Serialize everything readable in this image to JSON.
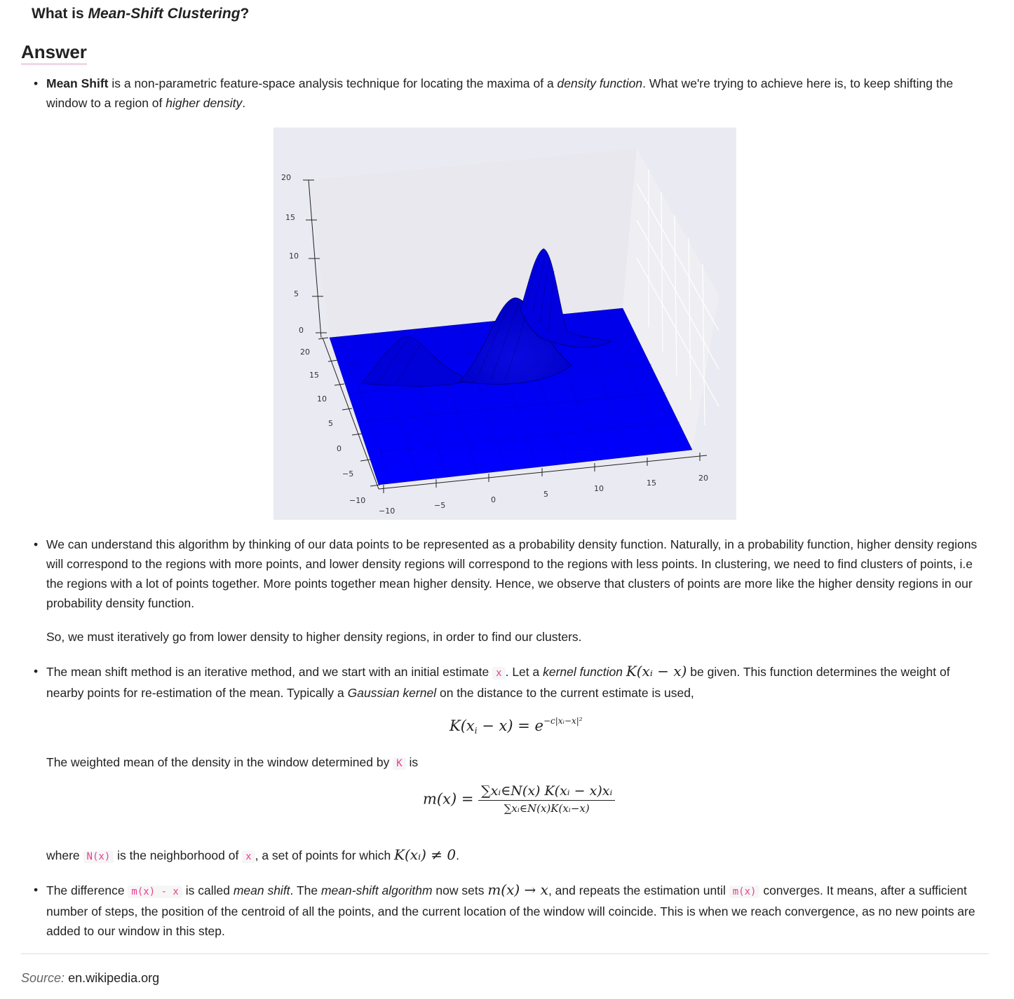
{
  "question": {
    "prefix": "What is ",
    "term": "Mean-Shift Clustering",
    "suffix": "?"
  },
  "answer_heading": "Answer",
  "bullet1": {
    "bold": "Mean Shift",
    "t1": " is a non-parametric feature-space analysis technique for locating the maxima of a ",
    "em1": "density function",
    "t2": ". What we're trying to achieve here is, to keep shifting the window to a region of ",
    "em2": "higher density",
    "t3": "."
  },
  "figure": {
    "z_ticks": [
      "20",
      "15",
      "10",
      "5",
      "0"
    ],
    "y_ticks": [
      "20",
      "15",
      "10",
      "5",
      "0",
      "−5",
      "−10"
    ],
    "x_ticks": [
      "−10",
      "−5",
      "0",
      "5",
      "10",
      "15",
      "20"
    ],
    "surface_color": "#0000ff",
    "pane_color": "#eaeaf2"
  },
  "bullet2": {
    "text": "We can understand this algorithm by thinking of our data points to be represented as a probability density function. Naturally, in a probability function, higher density regions will correspond to the regions with more points, and lower density regions will correspond to the regions with less points. In clustering, we need to find clusters of points, i.e the regions with a lot of points together. More points together mean higher density. Hence, we observe that clusters of points are more like the higher density regions in our probability density function.",
    "followup": "So, we must iteratively go from lower density to higher density regions, in order to find our clusters."
  },
  "bullet3": {
    "t1": "The mean shift method is an iterative method, and we start with an initial estimate ",
    "code1": "x",
    "t2": ". Let a ",
    "em1": "kernel function",
    "math1": "K(xᵢ − x)",
    "t3": " be given. This function determines the weight of nearby points for re-estimation of the mean. Typically a ",
    "em2": "Gaussian kernel",
    "t4": " on the distance to the current estimate is used,",
    "eq1_lhs": "K(x",
    "eq1_sub": "i",
    "eq1_mid": " − x) = e",
    "eq1_sup": "−c|xᵢ−x|²",
    "weighted_t1": "The weighted mean of the density in the window determined by ",
    "weighted_code": "K",
    "weighted_t2": " is",
    "eq2_lhs": "m(x) =",
    "eq2_num": "∑xᵢ∈N(x) K(xᵢ − x)xᵢ",
    "eq2_den": "∑xᵢ∈N(x)K(xᵢ−x)",
    "where_t1": "where ",
    "where_code1": "N(x)",
    "where_t2": " is the neighborhood of ",
    "where_code2": "x",
    "where_t3": ", a set of points for which ",
    "where_math": "K(xᵢ) ≠ 0",
    "where_t4": "."
  },
  "bullet4": {
    "t1": "The difference ",
    "code1": "m(x) - x",
    "t2": " is called ",
    "em1": "mean shift",
    "t3": ". The ",
    "em2": "mean-shift algorithm",
    "t4": " now sets ",
    "math1": "m(x) → x",
    "t5": ", and repeats the estimation until ",
    "code2": "m(x)",
    "t6": " converges. It means, after a sufficient number of steps, the position of the centroid of all the points, and the current location of the window will coincide. This is when we reach convergence, as no new points are added to our window in this step."
  },
  "source": {
    "label": "Source:",
    "site": "en.wikipedia.org"
  }
}
